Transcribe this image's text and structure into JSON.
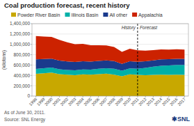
{
  "chart_data": {
    "type": "area",
    "stacked": true,
    "title": "Coal production forecast, recent history",
    "y_label": "(kilotons)",
    "x": [
      1998,
      1999,
      2000,
      2001,
      2002,
      2003,
      2004,
      2005,
      2006,
      2007,
      2008,
      2009,
      2010,
      2011,
      2012,
      2013,
      2014,
      2015,
      2016,
      2017
    ],
    "series": [
      {
        "name": "Powder River Basin",
        "color": "#c8a800",
        "values": [
          430000,
          440000,
          455000,
          425000,
          415000,
          405000,
          420000,
          415000,
          425000,
          435000,
          415000,
          385000,
          420000,
          410000,
          405000,
          410000,
          415000,
          410000,
          415000,
          412000
        ]
      },
      {
        "name": "Illinois Basin",
        "color": "#00b0a8",
        "values": [
          95000,
          98000,
          98000,
          94000,
          91000,
          93000,
          95000,
          98000,
          102000,
          105000,
          115000,
          105000,
          115000,
          120000,
          140000,
          158000,
          172000,
          182000,
          188000,
          192000
        ]
      },
      {
        "name": "All other",
        "color": "#1a3a8c",
        "values": [
          185000,
          178000,
          172000,
          168000,
          163000,
          160000,
          158000,
          155000,
          152000,
          150000,
          148000,
          133000,
          138000,
          133000,
          128000,
          123000,
          122000,
          120000,
          118000,
          115000
        ]
      },
      {
        "name": "Appalachia",
        "color": "#cc2200",
        "values": [
          450000,
          435000,
          420000,
          400000,
          370000,
          345000,
          335000,
          315000,
          305000,
          288000,
          272000,
          232000,
          242000,
          222000,
          205000,
          198000,
          193000,
          188000,
          184000,
          180000
        ]
      }
    ],
    "xlim": [
      1997.5,
      2017.5
    ],
    "ylim": [
      0,
      1400000
    ],
    "yticks": [
      0,
      {
        "value": 200000,
        "label": "200,000"
      },
      {
        "value": 400000,
        "label": "400,000"
      },
      {
        "value": 600000,
        "label": "600,000"
      },
      {
        "value": 800000,
        "label": "800,000"
      },
      {
        "value": 1000000,
        "label": "1,000,000"
      },
      {
        "value": 1200000,
        "label": "1,200,000"
      },
      {
        "value": 1400000,
        "label": "1,400,000"
      }
    ],
    "grid": true,
    "legend": "top",
    "annotations": [
      {
        "x": 2011,
        "text_before": "History",
        "text_after": "Forecast"
      }
    ],
    "notes": [
      "As of June 30, 2011.",
      "Source: SNL Energy"
    ],
    "logo": "✱SNL"
  }
}
